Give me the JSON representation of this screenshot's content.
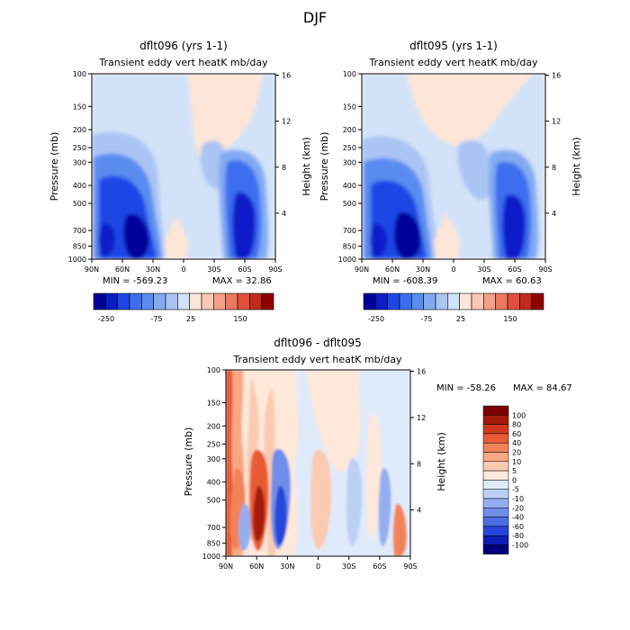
{
  "figure": {
    "title": "DJF"
  },
  "colors": {
    "scale_a": [
      "#00009a",
      "#0a1ec8",
      "#1e46e6",
      "#3c6ef0",
      "#5a8cf0",
      "#82aaf2",
      "#aac4f4",
      "#d2e2f8",
      "#fde6d8",
      "#fac8b4",
      "#f4a086",
      "#ec7860",
      "#e0503c",
      "#c42a1c",
      "#8c0000"
    ],
    "scale_diff": [
      "#00007a",
      "#0c1eb4",
      "#2846dc",
      "#4a6ee6",
      "#6e8eea",
      "#94aef0",
      "#bcd0f6",
      "#dfeafb",
      "#fde8da",
      "#fbcab2",
      "#f7a882",
      "#f2825a",
      "#e85c36",
      "#cf3a1c",
      "#a41a0a",
      "#7a0000"
    ]
  },
  "chart_data": [
    {
      "type": "heatmap",
      "title": "dflt096 (yrs 1-1)",
      "subtitle": "Transient eddy vert heatK mb/day",
      "xlabel": "",
      "ylabel": "Pressure (mb)",
      "ylabel_right": "Height (km)",
      "x_ticks": [
        "90N",
        "60N",
        "30N",
        "0",
        "30S",
        "60S",
        "90S"
      ],
      "y_ticks": [
        100,
        150,
        200,
        250,
        300,
        400,
        500,
        700,
        850,
        1000
      ],
      "y_tick_labels": [
        "100",
        "150",
        "200",
        "250",
        "300",
        "400",
        "500",
        "700",
        "850",
        "1000"
      ],
      "height_ticks": [
        4,
        8,
        12,
        16
      ],
      "height_tick_labels": [
        "4",
        "8",
        "12",
        "16"
      ],
      "ylim": [
        1000,
        100
      ],
      "xlim": [
        90,
        -90
      ],
      "min_label": "MIN = -569.23",
      "max_label": "MAX =   32.86",
      "colorbar_labels": [
        "-250",
        "-75",
        "25",
        "150"
      ],
      "features": [
        {
          "lat": 43,
          "p": 820,
          "value": -569
        },
        {
          "lat": 72,
          "p": 820,
          "value": -300
        },
        {
          "lat": -55,
          "p": 800,
          "value": -350
        },
        {
          "lat": -22,
          "p": 350,
          "value": -40
        },
        {
          "lat": 55,
          "p": 420,
          "value": -90
        }
      ]
    },
    {
      "type": "heatmap",
      "title": "dflt095 (yrs 1-1)",
      "subtitle": "Transient eddy vert heatK mb/day",
      "xlabel": "",
      "ylabel": "Pressure (mb)",
      "ylabel_right": "Height (km)",
      "x_ticks": [
        "90N",
        "60N",
        "30N",
        "0",
        "30S",
        "60S",
        "90S"
      ],
      "y_ticks": [
        100,
        150,
        200,
        250,
        300,
        400,
        500,
        700,
        850,
        1000
      ],
      "y_tick_labels": [
        "100",
        "150",
        "200",
        "250",
        "300",
        "400",
        "500",
        "700",
        "850",
        "1000"
      ],
      "height_ticks": [
        4,
        8,
        12,
        16
      ],
      "height_tick_labels": [
        "4",
        "8",
        "12",
        "16"
      ],
      "ylim": [
        1000,
        100
      ],
      "xlim": [
        90,
        -90
      ],
      "min_label": "MIN = -608.39",
      "max_label": "MAX =   60.63",
      "colorbar_labels": [
        "-250",
        "-75",
        "25",
        "150"
      ],
      "features": [
        {
          "lat": 45,
          "p": 820,
          "value": -608
        },
        {
          "lat": 75,
          "p": 820,
          "value": -280
        },
        {
          "lat": -55,
          "p": 800,
          "value": -330
        },
        {
          "lat": -22,
          "p": 320,
          "value": -50
        },
        {
          "lat": 55,
          "p": 400,
          "value": -100
        }
      ]
    },
    {
      "type": "heatmap",
      "title": "dflt096 - dflt095",
      "subtitle": "Transient eddy vert heatK mb/day",
      "xlabel": "",
      "ylabel": "Pressure (mb)",
      "ylabel_right": "Height (km)",
      "x_ticks": [
        "90N",
        "60N",
        "30N",
        "0",
        "30S",
        "60S",
        "90S"
      ],
      "y_ticks": [
        100,
        150,
        200,
        250,
        300,
        400,
        500,
        700,
        850,
        1000
      ],
      "y_tick_labels": [
        "100",
        "150",
        "200",
        "250",
        "300",
        "400",
        "500",
        "700",
        "850",
        "1000"
      ],
      "height_ticks": [
        4,
        8,
        12,
        16
      ],
      "height_tick_labels": [
        "4",
        "8",
        "12",
        "16"
      ],
      "ylim": [
        1000,
        100
      ],
      "xlim": [
        90,
        -90
      ],
      "min_label": "MIN = -58.26",
      "max_label": "MAX =   84.67",
      "colorbar_levels": [
        "100",
        "80",
        "60",
        "40",
        "20",
        "10",
        "5",
        "0",
        "-5",
        "-10",
        "-20",
        "-40",
        "-60",
        "-80",
        "-100"
      ],
      "features": [
        {
          "lat": 35,
          "p": 750,
          "value": -58
        },
        {
          "lat": 55,
          "p": 650,
          "value": 84
        },
        {
          "lat": 75,
          "p": 800,
          "value": 60
        },
        {
          "lat": -75,
          "p": 850,
          "value": 50
        }
      ]
    }
  ]
}
